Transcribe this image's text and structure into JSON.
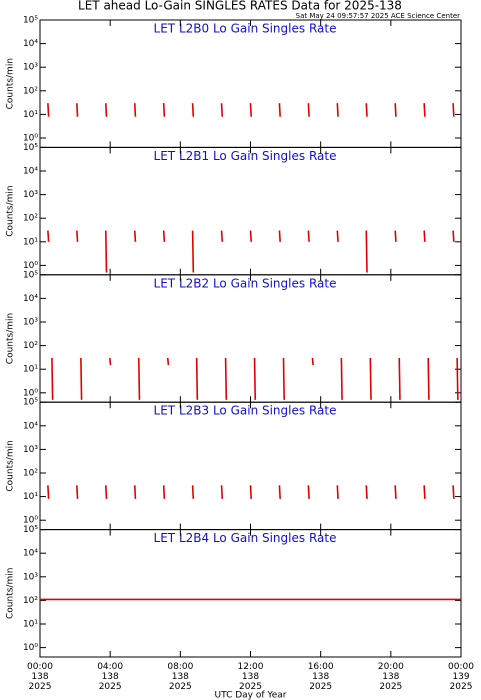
{
  "title": "LET ahead Lo-Gain SINGLES RATES Data for 2025-138",
  "subtitle": "Sat May 24 09:57:57 2025 ACE Science Center",
  "chart_data": [
    {
      "type": "line",
      "title": "LET L2B0 Lo Gain Singles Rate",
      "ylabel": "Counts/min",
      "log_y": true,
      "ylim": [
        0.4,
        100000
      ],
      "yticks": [
        {
          "value": 1,
          "label": "10⁰"
        },
        {
          "value": 10,
          "label": "10¹"
        },
        {
          "value": 100,
          "label": "10²"
        },
        {
          "value": 1000,
          "label": "10³"
        },
        {
          "value": 10000,
          "label": "10⁴"
        },
        {
          "value": 100000,
          "label": "10⁵"
        }
      ],
      "xlim": [
        0,
        24
      ],
      "xticks": [
        0,
        4,
        8,
        12,
        16,
        20,
        24
      ],
      "series": [
        {
          "color": "#e00000",
          "x": [
            0.45,
            0.49,
            0.5,
            2.1,
            2.14,
            2.15,
            3.75,
            3.79,
            3.8,
            5.4,
            5.44,
            5.45,
            7.05,
            7.09,
            7.1,
            8.7,
            8.74,
            8.75,
            10.35,
            10.39,
            10.4,
            12.0,
            12.04,
            12.05,
            13.65,
            13.69,
            13.7,
            15.3,
            15.34,
            15.35,
            16.95,
            16.99,
            17.0,
            18.6,
            18.64,
            18.65,
            20.25,
            20.29,
            20.3,
            21.9,
            21.94,
            21.95,
            23.55,
            23.59,
            23.6
          ],
          "values": [
            30,
            8,
            null,
            30,
            8,
            null,
            30,
            8,
            null,
            30,
            8,
            null,
            30,
            8,
            null,
            30,
            8,
            null,
            30,
            8,
            null,
            30,
            8,
            null,
            30,
            8,
            null,
            30,
            8,
            null,
            30,
            8,
            null,
            30,
            8,
            null,
            30,
            8,
            null,
            30,
            8,
            null,
            30,
            8,
            null
          ]
        }
      ]
    },
    {
      "type": "line",
      "title": "LET L2B1 Lo Gain Singles Rate",
      "ylabel": "Counts/min",
      "log_y": true,
      "ylim": [
        0.4,
        100000
      ],
      "yticks": [
        {
          "value": 1,
          "label": "10⁰"
        },
        {
          "value": 10,
          "label": "10¹"
        },
        {
          "value": 100,
          "label": "10²"
        },
        {
          "value": 1000,
          "label": "10³"
        },
        {
          "value": 10000,
          "label": "10⁴"
        },
        {
          "value": 100000,
          "label": "10⁵"
        }
      ],
      "xlim": [
        0,
        24
      ],
      "xticks": [
        0,
        4,
        8,
        12,
        16,
        20,
        24
      ],
      "series": [
        {
          "color": "#e00000",
          "x": [
            0.45,
            0.49,
            0.5,
            2.1,
            2.14,
            2.15,
            3.75,
            3.79,
            3.8,
            5.4,
            5.44,
            5.45,
            7.05,
            7.09,
            7.1,
            8.7,
            8.74,
            8.75,
            10.35,
            10.39,
            10.4,
            12.0,
            12.04,
            12.05,
            13.65,
            13.69,
            13.7,
            15.3,
            15.34,
            15.35,
            16.95,
            16.99,
            17.0,
            18.6,
            18.64,
            18.65,
            20.25,
            20.29,
            20.3,
            21.9,
            21.94,
            21.95,
            23.55,
            23.59,
            23.6
          ],
          "values": [
            30,
            10,
            null,
            30,
            10,
            null,
            30,
            0.5,
            null,
            30,
            10,
            null,
            30,
            10,
            null,
            30,
            0.5,
            null,
            30,
            10,
            null,
            30,
            10,
            null,
            30,
            10,
            null,
            30,
            10,
            null,
            30,
            10,
            null,
            30,
            0.5,
            null,
            30,
            10,
            null,
            30,
            10,
            null,
            30,
            10,
            null
          ]
        }
      ]
    },
    {
      "type": "line",
      "title": "LET L2B2 Lo Gain Singles Rate",
      "ylabel": "Counts/min",
      "log_y": true,
      "ylim": [
        0.4,
        100000
      ],
      "yticks": [
        {
          "value": 1,
          "label": "10⁰"
        },
        {
          "value": 10,
          "label": "10¹"
        },
        {
          "value": 100,
          "label": "10²"
        },
        {
          "value": 1000,
          "label": "10³"
        },
        {
          "value": 10000,
          "label": "10⁴"
        },
        {
          "value": 100000,
          "label": "10⁵"
        }
      ],
      "xlim": [
        0,
        24
      ],
      "xticks": [
        0,
        4,
        8,
        12,
        16,
        20,
        24
      ],
      "series": [
        {
          "color": "#e00000",
          "x": [
            0.68,
            0.72,
            0.73,
            2.33,
            2.37,
            2.38,
            3.98,
            4.02,
            4.03,
            5.63,
            5.67,
            5.68,
            7.28,
            7.32,
            7.33,
            8.93,
            8.97,
            8.98,
            10.58,
            10.62,
            10.63,
            12.23,
            12.27,
            12.28,
            13.88,
            13.92,
            13.93,
            15.53,
            15.57,
            15.58,
            17.18,
            17.22,
            17.23,
            18.83,
            18.87,
            18.88,
            20.48,
            20.52,
            20.53,
            22.13,
            22.17,
            22.18,
            23.78,
            23.82,
            23.83
          ],
          "values": [
            30,
            0.5,
            null,
            30,
            0.5,
            null,
            30,
            15,
            null,
            30,
            0.5,
            null,
            30,
            15,
            null,
            30,
            0.5,
            null,
            30,
            0.5,
            null,
            30,
            0.5,
            null,
            30,
            0.5,
            null,
            30,
            15,
            null,
            30,
            0.5,
            null,
            30,
            0.5,
            null,
            30,
            0.5,
            null,
            30,
            0.5,
            null,
            30,
            0.5,
            null
          ]
        }
      ]
    },
    {
      "type": "line",
      "title": "LET L2B3 Lo Gain Singles Rate",
      "ylabel": "Counts/min",
      "log_y": true,
      "ylim": [
        0.4,
        100000
      ],
      "yticks": [
        {
          "value": 1,
          "label": "10⁰"
        },
        {
          "value": 10,
          "label": "10¹"
        },
        {
          "value": 100,
          "label": "10²"
        },
        {
          "value": 1000,
          "label": "10³"
        },
        {
          "value": 10000,
          "label": "10⁴"
        },
        {
          "value": 100000,
          "label": "10⁵"
        }
      ],
      "xlim": [
        0,
        24
      ],
      "xticks": [
        0,
        4,
        8,
        12,
        16,
        20,
        24
      ],
      "series": [
        {
          "color": "#e00000",
          "x": [
            0.45,
            0.49,
            0.5,
            2.1,
            2.14,
            2.15,
            3.75,
            3.79,
            3.8,
            5.4,
            5.44,
            5.45,
            7.05,
            7.09,
            7.1,
            8.7,
            8.74,
            8.75,
            10.35,
            10.39,
            10.4,
            12.0,
            12.04,
            12.05,
            13.65,
            13.69,
            13.7,
            15.3,
            15.34,
            15.35,
            16.95,
            16.99,
            17.0,
            18.6,
            18.64,
            18.65,
            20.25,
            20.29,
            20.3,
            21.9,
            21.94,
            21.95,
            23.55,
            23.59,
            23.6
          ],
          "values": [
            30,
            8,
            null,
            30,
            8,
            null,
            30,
            8,
            null,
            30,
            8,
            null,
            30,
            8,
            null,
            30,
            8,
            null,
            30,
            8,
            null,
            30,
            8,
            null,
            30,
            8,
            null,
            30,
            8,
            null,
            30,
            8,
            null,
            30,
            8,
            null,
            30,
            8,
            null,
            30,
            8,
            null,
            30,
            8,
            null
          ]
        }
      ]
    },
    {
      "type": "line",
      "title": "LET L2B4 Lo Gain Singles Rate",
      "ylabel": "Counts/min",
      "log_y": true,
      "ylim": [
        0.4,
        100000
      ],
      "yticks": [
        {
          "value": 1,
          "label": "10⁰"
        },
        {
          "value": 10,
          "label": "10¹"
        },
        {
          "value": 100,
          "label": "10²"
        },
        {
          "value": 1000,
          "label": "10³"
        },
        {
          "value": 10000,
          "label": "10⁴"
        },
        {
          "value": 100000,
          "label": "10⁵"
        }
      ],
      "xlim": [
        0,
        24
      ],
      "xlabel": "UTC Day of Year",
      "xticks": [
        {
          "value": 0,
          "label": "00:00\n138\n2025"
        },
        {
          "value": 4,
          "label": "04:00\n138\n2025"
        },
        {
          "value": 8,
          "label": "08:00\n138\n2025"
        },
        {
          "value": 12,
          "label": "12:00\n138\n2025"
        },
        {
          "value": 16,
          "label": "16:00\n138\n2025"
        },
        {
          "value": 20,
          "label": "20:00\n138\n2025"
        },
        {
          "value": 24,
          "label": "00:00\n139\n2025"
        }
      ],
      "series": [
        {
          "color": "#e00000",
          "x": [
            0,
            24
          ],
          "values": [
            110,
            110
          ]
        }
      ]
    }
  ]
}
